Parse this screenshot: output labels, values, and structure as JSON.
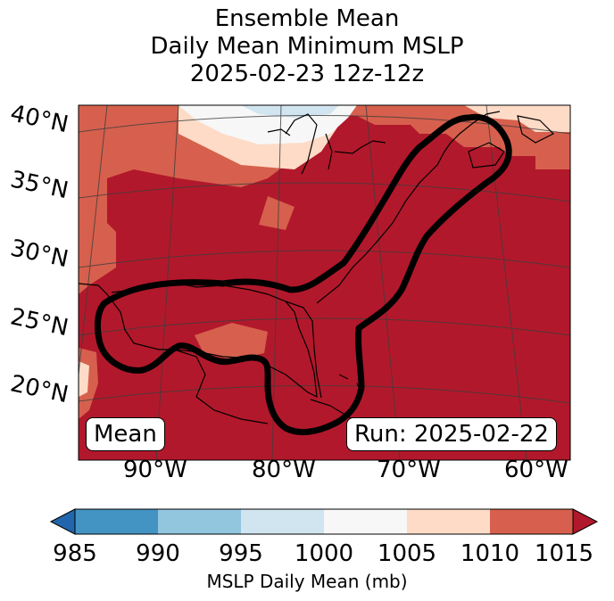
{
  "title": {
    "line1": "Ensemble Mean",
    "line2": "Daily Mean Minimum MSLP",
    "line3": "2025-02-23 12z-12z"
  },
  "map": {
    "lat_labels": [
      "40°N",
      "35°N",
      "30°N",
      "25°N",
      "20°N"
    ],
    "lon_labels": [
      "90°W",
      "80°W",
      "70°W",
      "60°W"
    ],
    "mean_box": "Mean",
    "run_box": "Run: 2025-02-22"
  },
  "colorbar": {
    "ticks": [
      "985",
      "990",
      "995",
      "1000",
      "1005",
      "1010",
      "1015"
    ],
    "label": "MSLP Daily Mean (mb)",
    "colors": [
      "#2166ac",
      "#4393c3",
      "#92c5de",
      "#d1e5f0",
      "#f7f7f7",
      "#fddbc7",
      "#d6604d",
      "#b2182b"
    ]
  }
}
